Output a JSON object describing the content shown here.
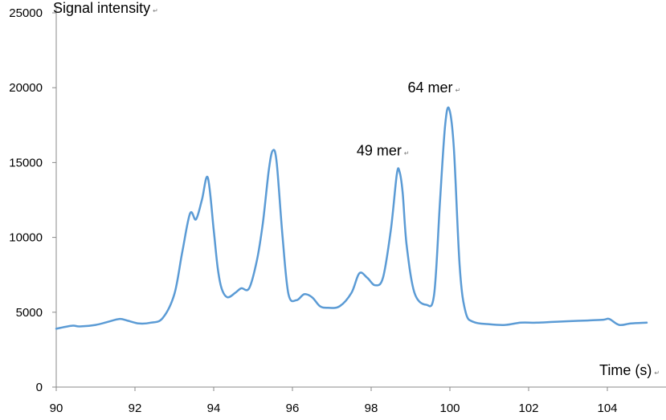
{
  "chart_data": {
    "type": "line",
    "title": "",
    "xlabel": "Time (s)",
    "ylabel": "Signal intensity",
    "xlim": [
      90,
      105
    ],
    "ylim": [
      0,
      25000
    ],
    "x_ticks": [
      90,
      92,
      94,
      96,
      98,
      100,
      102,
      104
    ],
    "y_ticks": [
      0,
      5000,
      10000,
      15000,
      20000,
      25000
    ],
    "grid": false,
    "legend": "none",
    "line_color": "#5B9BD5",
    "paragraph_mark": "↵",
    "annotations": [
      {
        "text": "64 mer",
        "x": 99.6,
        "y": 20000
      },
      {
        "text": "49 mer",
        "x": 98.3,
        "y": 15800
      }
    ],
    "series": [
      {
        "x": [
          90.0,
          90.4,
          90.6,
          91.0,
          91.3,
          91.6,
          91.8,
          92.1,
          92.4,
          92.7,
          93.0,
          93.2,
          93.4,
          93.55,
          93.7,
          93.85,
          94.0,
          94.1,
          94.2,
          94.35,
          94.55,
          94.7,
          94.9,
          95.1,
          95.25,
          95.4,
          95.5,
          95.6,
          95.75,
          95.9,
          96.1,
          96.3,
          96.5,
          96.7,
          96.9,
          97.2,
          97.5,
          97.7,
          97.9,
          98.1,
          98.3,
          98.5,
          98.65,
          98.72,
          98.8,
          98.9,
          99.1,
          99.4,
          99.6,
          99.75,
          99.88,
          99.98,
          100.1,
          100.25,
          100.4,
          100.6,
          101.0,
          101.4,
          101.8,
          102.2,
          102.6,
          103.0,
          103.5,
          103.9,
          104.05,
          104.3,
          104.6,
          105.0
        ],
        "y": [
          3900,
          4100,
          4050,
          4150,
          4350,
          4550,
          4450,
          4250,
          4300,
          4600,
          6200,
          9000,
          11600,
          11200,
          12500,
          14000,
          10500,
          8000,
          6600,
          6000,
          6300,
          6600,
          6600,
          8500,
          11000,
          14500,
          15800,
          15000,
          10000,
          6200,
          5800,
          6200,
          6000,
          5400,
          5300,
          5400,
          6300,
          7600,
          7300,
          6800,
          7300,
          10500,
          14200,
          14400,
          13000,
          9500,
          6300,
          5500,
          6200,
          12500,
          17500,
          18600,
          16000,
          8000,
          5000,
          4350,
          4200,
          4150,
          4300,
          4300,
          4350,
          4400,
          4450,
          4500,
          4550,
          4150,
          4250,
          4300
        ]
      }
    ]
  }
}
